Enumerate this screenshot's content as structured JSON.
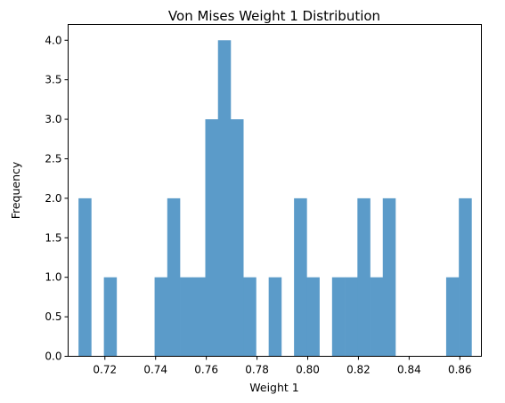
{
  "chart_data": {
    "type": "bar",
    "title": "Von Mises Weight 1 Distribution",
    "xlabel": "Weight 1",
    "ylabel": "Frequency",
    "color": "#5b9bc9",
    "xlim": [
      0.7055,
      0.8685
    ],
    "ylim": [
      0,
      4.2
    ],
    "xticks": [
      0.72,
      0.74,
      0.76,
      0.78,
      0.8,
      0.82,
      0.84,
      0.86
    ],
    "xtick_labels": [
      "0.72",
      "0.74",
      "0.76",
      "0.78",
      "0.80",
      "0.82",
      "0.84",
      "0.86"
    ],
    "yticks": [
      0,
      0.5,
      1,
      1.5,
      2,
      2.5,
      3,
      3.5,
      4
    ],
    "ytick_labels": [
      "0.0",
      "0.5",
      "1.0",
      "1.5",
      "2.0",
      "2.5",
      "3.0",
      "3.5",
      "4.0"
    ],
    "bin_edges": [
      0.7096,
      0.7146,
      0.7196,
      0.7246,
      0.7296,
      0.7346,
      0.7396,
      0.7446,
      0.7496,
      0.7546,
      0.7596,
      0.7646,
      0.7696,
      0.7746,
      0.7796,
      0.7846,
      0.7896,
      0.7946,
      0.7996,
      0.8046,
      0.8096,
      0.8146,
      0.8196,
      0.8246,
      0.8296,
      0.8346,
      0.8396,
      0.8446,
      0.8496,
      0.8546,
      0.8596,
      0.8646
    ],
    "counts": [
      2,
      0,
      1,
      0,
      0,
      0,
      1,
      2,
      1,
      1,
      3,
      4,
      3,
      1,
      0,
      1,
      0,
      2,
      1,
      0,
      1,
      1,
      2,
      1,
      2,
      0,
      0,
      0,
      0,
      1,
      2
    ]
  }
}
